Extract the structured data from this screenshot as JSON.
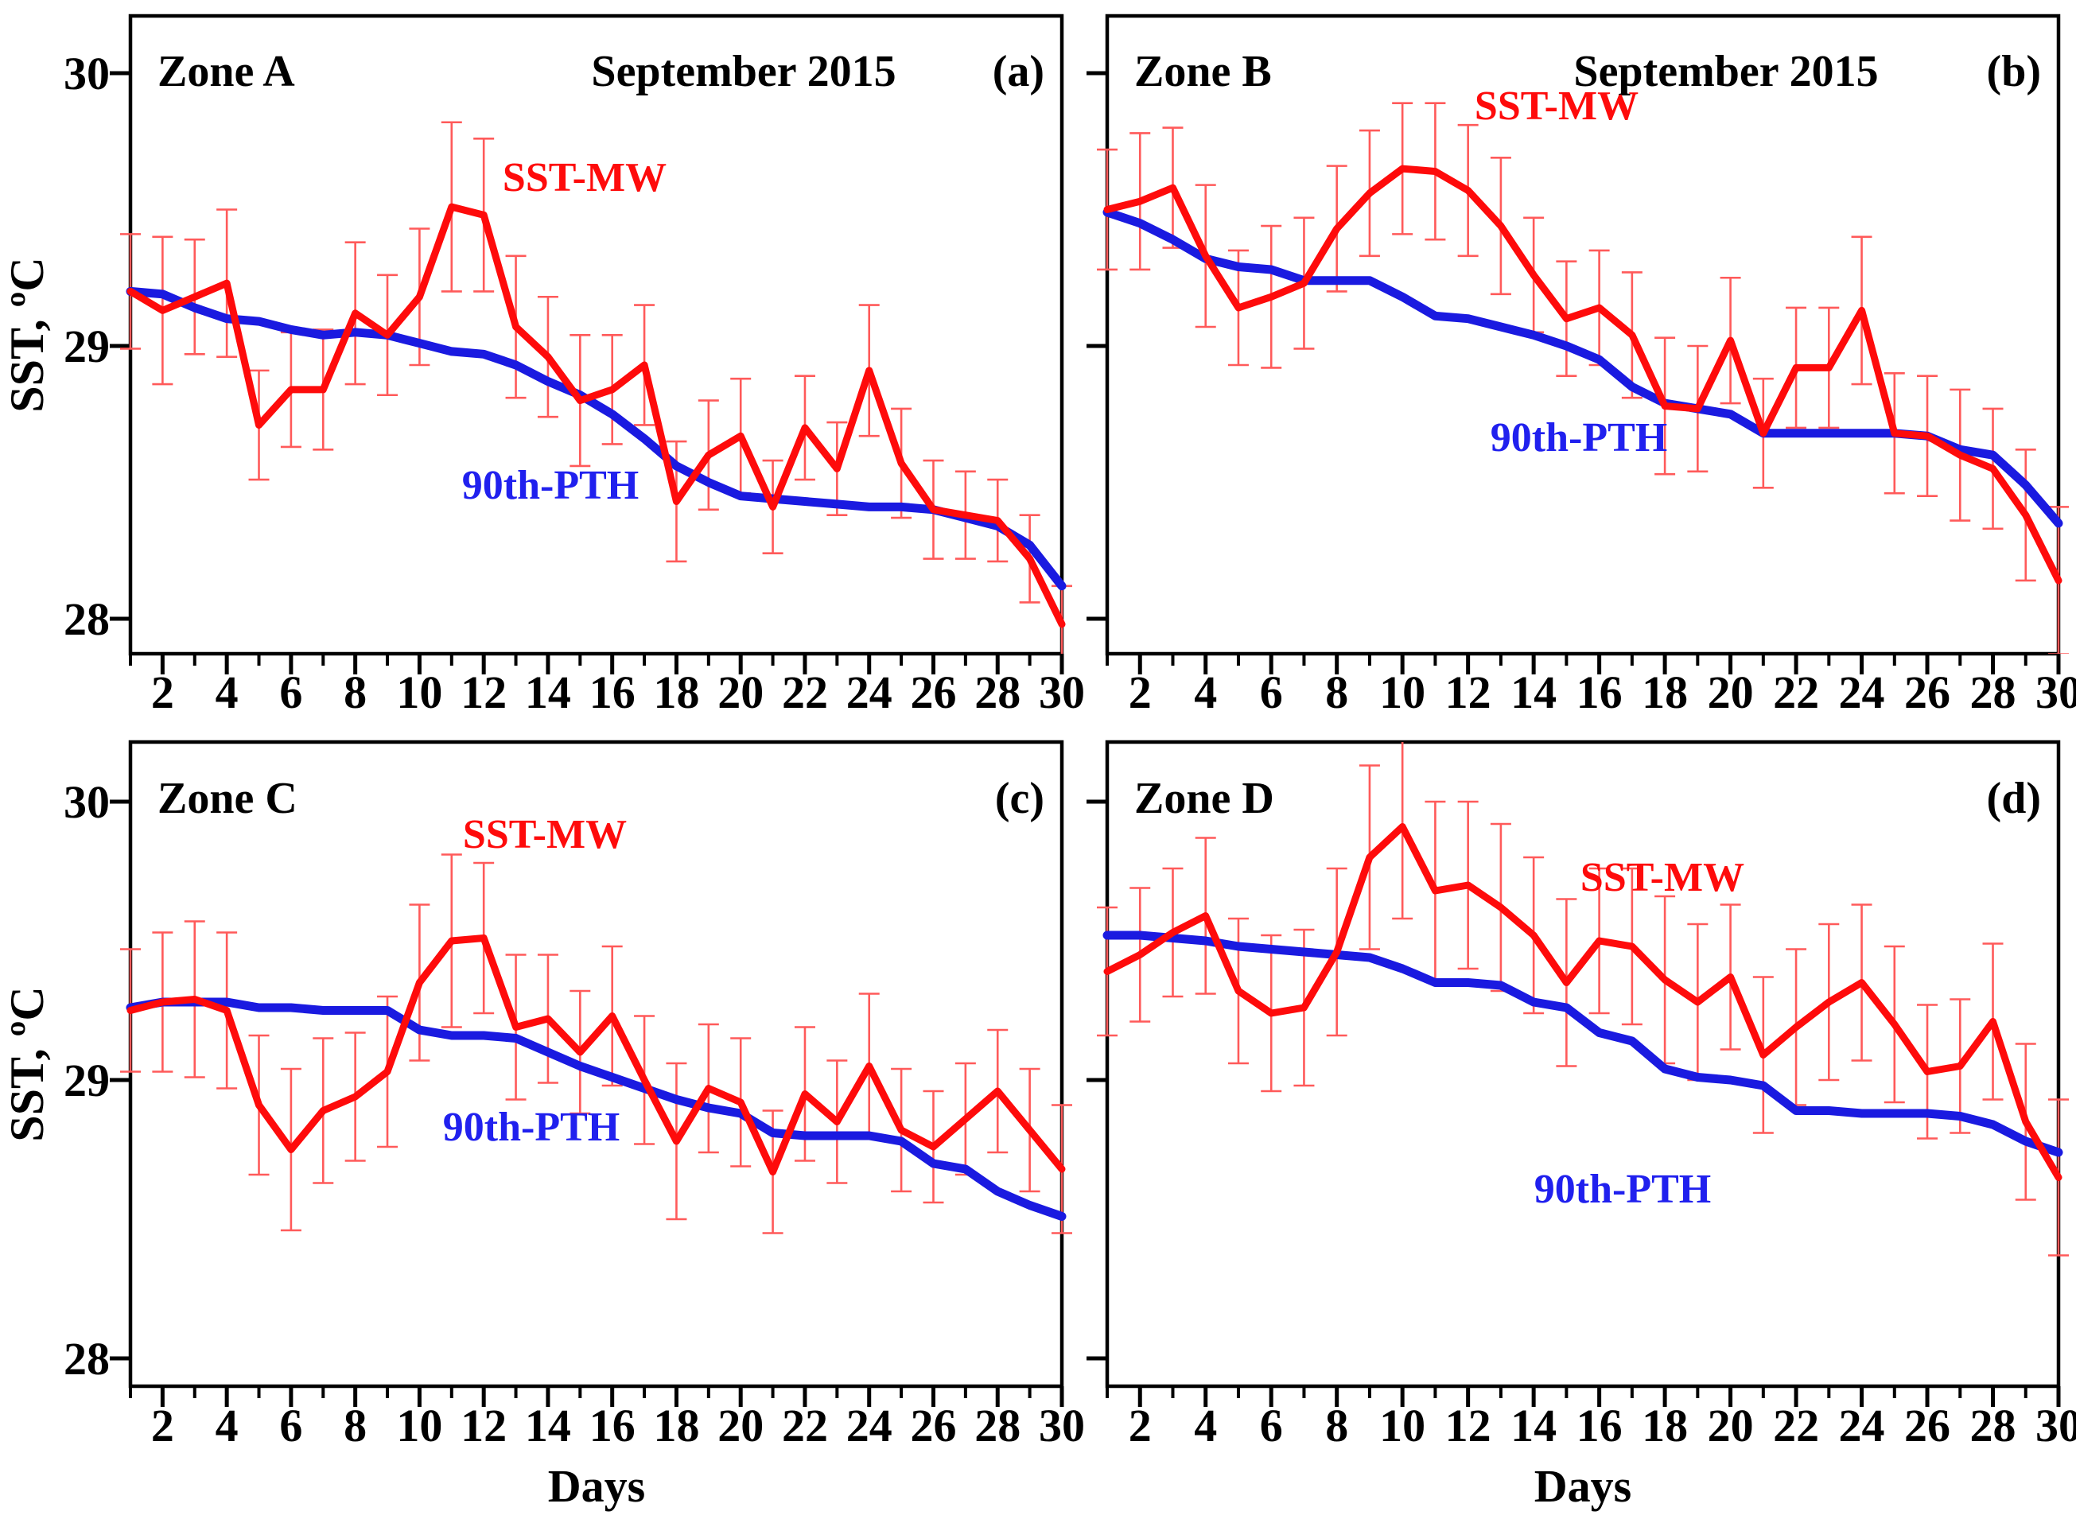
{
  "figure": {
    "y_axis_label": "SST, ºC",
    "x_axis_label": "Days",
    "y_tick_values": [
      30,
      29,
      28
    ],
    "y_tick_labels": [
      "30",
      "29",
      "28"
    ],
    "x_tick_label_values": [
      2,
      4,
      6,
      8,
      10,
      12,
      14,
      16,
      18,
      20,
      22,
      24,
      26,
      28,
      30
    ],
    "days": [
      1,
      2,
      3,
      4,
      5,
      6,
      7,
      8,
      9,
      10,
      11,
      12,
      13,
      14,
      15,
      16,
      17,
      18,
      19,
      20,
      21,
      22,
      23,
      24,
      25,
      26,
      27,
      28,
      29,
      30
    ],
    "colors": {
      "sst_mw_line": "#fe0b0b",
      "error_bar": "#ff5a5a",
      "pth_line": "#1a1ae0",
      "frame": "#000000",
      "background": "#ffffff"
    }
  },
  "chart_data": [
    {
      "id": "a",
      "type": "line",
      "zone_label": "Zone A",
      "month_title": "September 2015",
      "panel_tag": "(a)",
      "xlabel": "Days",
      "ylabel": "SST, ºC",
      "x_range": [
        1,
        30
      ],
      "ylim": [
        27.87,
        30.21
      ],
      "grid": false,
      "series": [
        {
          "name": "SST-MW",
          "values": [
            29.2,
            29.13,
            29.18,
            29.23,
            28.71,
            28.84,
            28.84,
            29.12,
            29.04,
            29.18,
            29.51,
            29.48,
            29.07,
            28.96,
            28.8,
            28.84,
            28.93,
            28.43,
            28.6,
            28.67,
            28.41,
            28.7,
            28.55,
            28.91,
            28.57,
            28.4,
            28.38,
            28.36,
            28.22,
            27.98
          ],
          "errors": [
            0.21,
            0.27,
            0.21,
            0.27,
            0.2,
            0.21,
            0.22,
            0.26,
            0.22,
            0.25,
            0.31,
            0.28,
            0.26,
            0.22,
            0.24,
            0.2,
            0.22,
            0.22,
            0.2,
            0.21,
            0.17,
            0.19,
            0.17,
            0.24,
            0.2,
            0.18,
            0.16,
            0.15,
            0.16,
            0.14
          ]
        },
        {
          "name": "90th-PTH",
          "values": [
            29.2,
            29.19,
            29.14,
            29.1,
            29.09,
            29.06,
            29.04,
            29.05,
            29.04,
            29.01,
            28.98,
            28.97,
            28.93,
            28.87,
            28.82,
            28.75,
            28.66,
            28.56,
            28.5,
            28.45,
            28.44,
            28.43,
            28.42,
            28.41,
            28.41,
            28.4,
            28.37,
            28.34,
            28.27,
            28.12
          ]
        }
      ]
    },
    {
      "id": "b",
      "type": "line",
      "zone_label": "Zone B",
      "month_title": "September 2015",
      "panel_tag": "(b)",
      "xlabel": "Days",
      "ylabel": "SST, ºC",
      "x_range": [
        1,
        30
      ],
      "ylim": [
        27.87,
        30.21
      ],
      "grid": false,
      "series": [
        {
          "name": "SST-MW",
          "values": [
            29.5,
            29.53,
            29.58,
            29.33,
            29.14,
            29.18,
            29.23,
            29.43,
            29.56,
            29.65,
            29.64,
            29.57,
            29.44,
            29.26,
            29.1,
            29.14,
            29.04,
            28.78,
            28.77,
            29.02,
            28.68,
            28.92,
            28.92,
            29.13,
            28.68,
            28.67,
            28.6,
            28.55,
            28.38,
            28.14
          ],
          "errors": [
            0.22,
            0.25,
            0.22,
            0.26,
            0.21,
            0.26,
            0.24,
            0.23,
            0.23,
            0.24,
            0.25,
            0.24,
            0.25,
            0.21,
            0.21,
            0.21,
            0.23,
            0.25,
            0.23,
            0.23,
            0.2,
            0.22,
            0.22,
            0.27,
            0.22,
            0.22,
            0.24,
            0.22,
            0.24,
            0.27
          ]
        },
        {
          "name": "90th-PTH",
          "values": [
            29.49,
            29.45,
            29.39,
            29.32,
            29.29,
            29.28,
            29.24,
            29.24,
            29.24,
            29.18,
            29.11,
            29.1,
            29.07,
            29.04,
            29.0,
            28.95,
            28.85,
            28.79,
            28.77,
            28.75,
            28.68,
            28.68,
            28.68,
            28.68,
            28.68,
            28.67,
            28.62,
            28.6,
            28.49,
            28.35
          ]
        }
      ]
    },
    {
      "id": "c",
      "type": "line",
      "zone_label": "Zone  C",
      "panel_tag": "(c)",
      "xlabel": "Days",
      "ylabel": "SST, ºC",
      "x_range": [
        1,
        30
      ],
      "ylim": [
        27.9,
        30.21
      ],
      "grid": false,
      "series": [
        {
          "name": "SST-MW",
          "values": [
            29.25,
            29.28,
            29.29,
            29.25,
            28.91,
            28.75,
            28.89,
            28.94,
            29.03,
            29.35,
            29.5,
            29.51,
            29.19,
            29.22,
            29.1,
            29.23,
            29.0,
            28.78,
            28.97,
            28.92,
            28.67,
            28.95,
            28.85,
            29.05,
            28.82,
            28.76,
            28.86,
            28.96,
            28.82,
            28.68
          ],
          "errors": [
            0.22,
            0.25,
            0.28,
            0.28,
            0.25,
            0.29,
            0.26,
            0.23,
            0.27,
            0.28,
            0.31,
            0.27,
            0.26,
            0.23,
            0.22,
            0.25,
            0.23,
            0.28,
            0.23,
            0.23,
            0.22,
            0.24,
            0.22,
            0.26,
            0.22,
            0.2,
            0.2,
            0.22,
            0.22,
            0.23
          ]
        },
        {
          "name": "90th-PTH",
          "values": [
            29.26,
            29.28,
            29.28,
            29.28,
            29.26,
            29.26,
            29.25,
            29.25,
            29.25,
            29.18,
            29.16,
            29.16,
            29.15,
            29.1,
            29.05,
            29.01,
            28.97,
            28.93,
            28.9,
            28.88,
            28.81,
            28.8,
            28.8,
            28.8,
            28.78,
            28.7,
            28.68,
            28.6,
            28.55,
            28.51
          ]
        }
      ]
    },
    {
      "id": "d",
      "type": "line",
      "zone_label": "Zone  D",
      "panel_tag": "(d)",
      "xlabel": "Days",
      "ylabel": "SST, ºC",
      "x_range": [
        1,
        30
      ],
      "ylim": [
        27.9,
        30.21
      ],
      "grid": false,
      "series": [
        {
          "name": "SST-MW",
          "values": [
            29.39,
            29.45,
            29.53,
            29.59,
            29.32,
            29.24,
            29.26,
            29.46,
            29.8,
            29.91,
            29.68,
            29.7,
            29.62,
            29.52,
            29.35,
            29.5,
            29.48,
            29.36,
            29.28,
            29.37,
            29.09,
            29.19,
            29.28,
            29.35,
            29.2,
            29.03,
            29.05,
            29.21,
            28.85,
            28.65
          ],
          "errors": [
            0.23,
            0.24,
            0.23,
            0.28,
            0.26,
            0.28,
            0.28,
            0.3,
            0.33,
            0.33,
            0.32,
            0.3,
            0.3,
            0.28,
            0.3,
            0.26,
            0.28,
            0.3,
            0.28,
            0.26,
            0.28,
            0.28,
            0.28,
            0.28,
            0.28,
            0.24,
            0.24,
            0.28,
            0.28,
            0.28
          ]
        },
        {
          "name": "90th-PTH",
          "values": [
            29.52,
            29.52,
            29.51,
            29.5,
            29.48,
            29.47,
            29.46,
            29.45,
            29.44,
            29.4,
            29.35,
            29.35,
            29.34,
            29.28,
            29.26,
            29.17,
            29.14,
            29.04,
            29.01,
            29.0,
            28.98,
            28.89,
            28.89,
            28.88,
            28.88,
            28.88,
            28.87,
            28.84,
            28.78,
            28.74
          ]
        }
      ]
    }
  ]
}
